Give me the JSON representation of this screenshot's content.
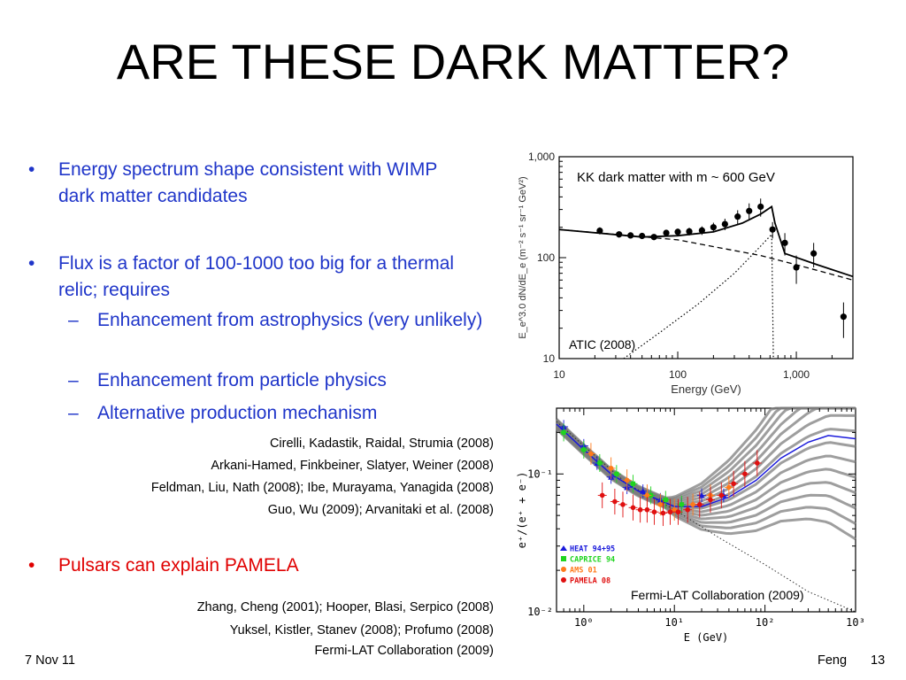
{
  "slide": {
    "title": "ARE THESE DARK MATTER?",
    "bullets": [
      {
        "marker": "•",
        "text": "Energy spectrum shape consistent with WIMP dark matter candidates"
      },
      {
        "marker": "•",
        "text": "Flux is a factor of 100-1000 too big for a thermal relic; requires"
      },
      {
        "marker": "•",
        "text": "Pulsars can explain PAMELA"
      }
    ],
    "subbullets": [
      {
        "marker": "–",
        "text": "Enhancement from astrophysics (very unlikely)"
      },
      {
        "marker": "–",
        "text": "Enhancement from particle physics"
      },
      {
        "marker": "–",
        "text": "Alternative production mechanism"
      }
    ],
    "refs_dm": [
      "Cirelli, Kadastik, Raidal, Strumia (2008)",
      "Arkani-Hamed, Finkbeiner, Slatyer, Weiner (2008)",
      "Feldman, Liu, Nath (2008); Ibe, Murayama, Yanagida (2008)",
      "Guo, Wu (2009);  Arvanitaki et al. (2008)"
    ],
    "refs_pulsar": [
      "Zhang, Cheng (2001);  Hooper, Blasi, Serpico (2008)",
      "Yuksel, Kistler, Stanev (2008); Profumo (2008)",
      "Fermi-LAT Collaboration (2009)"
    ],
    "footer": {
      "date": "7 Nov 11",
      "author": "Feng",
      "page": "13"
    },
    "colors": {
      "blue_text": "#1f35c9",
      "red_text": "#e00000"
    }
  },
  "chart_data": [
    {
      "type": "scatter",
      "xlabel": "Energy (GeV)",
      "ylabel": "E_e^3.0 dN/dE_e (m⁻² s⁻¹ sr⁻¹ GeV²)",
      "xscale": "log",
      "yscale": "log",
      "xlim": [
        10,
        3000
      ],
      "ylim": [
        10,
        1000
      ],
      "xticks": [
        {
          "v": 10,
          "label": "10"
        },
        {
          "v": 100,
          "label": "100"
        },
        {
          "v": 1000,
          "label": "1,000"
        }
      ],
      "yticks": [
        {
          "v": 10,
          "label": "10"
        },
        {
          "v": 100,
          "label": "100"
        },
        {
          "v": 1000,
          "label": "1,000"
        }
      ],
      "annotation": "KK dark matter with m ~ 600 GeV",
      "label": "ATIC (2008)",
      "points": [
        {
          "x": 22,
          "y": 185,
          "err": 15
        },
        {
          "x": 32,
          "y": 170,
          "err": 12
        },
        {
          "x": 40,
          "y": 166,
          "err": 10
        },
        {
          "x": 50,
          "y": 164,
          "err": 10
        },
        {
          "x": 63,
          "y": 160,
          "err": 10
        },
        {
          "x": 80,
          "y": 176,
          "err": 12
        },
        {
          "x": 100,
          "y": 180,
          "err": 14
        },
        {
          "x": 125,
          "y": 182,
          "err": 16
        },
        {
          "x": 160,
          "y": 186,
          "err": 18
        },
        {
          "x": 200,
          "y": 200,
          "err": 22
        },
        {
          "x": 250,
          "y": 215,
          "err": 28
        },
        {
          "x": 320,
          "y": 255,
          "err": 40
        },
        {
          "x": 400,
          "y": 290,
          "err": 55
        },
        {
          "x": 500,
          "y": 320,
          "err": 65
        },
        {
          "x": 630,
          "y": 190,
          "err": 35
        },
        {
          "x": 800,
          "y": 140,
          "err": 35
        },
        {
          "x": 1000,
          "y": 80,
          "err": 25
        },
        {
          "x": 1400,
          "y": 110,
          "err": 30
        },
        {
          "x": 2500,
          "y": 26,
          "err": 10
        }
      ],
      "total_curve": [
        [
          10,
          190
        ],
        [
          50,
          160
        ],
        [
          100,
          165
        ],
        [
          200,
          180
        ],
        [
          350,
          220
        ],
        [
          500,
          270
        ],
        [
          620,
          320
        ],
        [
          660,
          220
        ],
        [
          800,
          110
        ],
        [
          1500,
          85
        ],
        [
          3000,
          65
        ]
      ],
      "background_curve": [
        [
          10,
          190
        ],
        [
          100,
          150
        ],
        [
          500,
          105
        ],
        [
          1000,
          85
        ],
        [
          3000,
          60
        ]
      ],
      "kk_curve": [
        [
          35,
          10
        ],
        [
          70,
          18
        ],
        [
          150,
          35
        ],
        [
          300,
          70
        ],
        [
          500,
          130
        ],
        [
          620,
          170
        ],
        [
          640,
          10
        ]
      ]
    },
    {
      "type": "scatter",
      "xlabel": "E (GeV)",
      "ylabel": "e⁺/(e⁺ + e⁻)",
      "xscale": "log",
      "yscale": "log",
      "xlim": [
        0.5,
        1000
      ],
      "ylim": [
        0.01,
        0.3
      ],
      "xticks": [
        {
          "v": 1,
          "label": "10⁰"
        },
        {
          "v": 10,
          "label": "10¹"
        },
        {
          "v": 100,
          "label": "10²"
        },
        {
          "v": 1000,
          "label": "10³"
        }
      ],
      "yticks": [
        {
          "v": 0.01,
          "label": "10⁻²"
        },
        {
          "v": 0.1,
          "label": "10⁻¹"
        }
      ],
      "annotation": "Fermi-LAT Collaboration (2009)",
      "legend_placement": "bottom-left",
      "series": [
        {
          "name": "HEAT 94+95",
          "color": "#1a1adb",
          "marker": "triangle",
          "points": [
            [
              0.6,
              0.22
            ],
            [
              1.0,
              0.16
            ],
            [
              1.4,
              0.12
            ],
            [
              2.0,
              0.095
            ],
            [
              3.0,
              0.08
            ],
            [
              4.5,
              0.075
            ],
            [
              7.0,
              0.065
            ],
            [
              12,
              0.06
            ],
            [
              20,
              0.07
            ],
            [
              35,
              0.07
            ]
          ]
        },
        {
          "name": "CAPRICE 94",
          "color": "#1fd41f",
          "marker": "square",
          "points": [
            [
              0.6,
              0.2
            ],
            [
              1.0,
              0.15
            ],
            [
              1.5,
              0.12
            ],
            [
              2.3,
              0.1
            ],
            [
              3.5,
              0.085
            ],
            [
              5.5,
              0.07
            ],
            [
              8,
              0.065
            ],
            [
              12,
              0.06
            ]
          ]
        },
        {
          "name": "AMS 01",
          "color": "#ff7a1a",
          "marker": "circle",
          "points": [
            [
              1.2,
              0.14
            ],
            [
              2.0,
              0.11
            ],
            [
              3.0,
              0.09
            ],
            [
              5.0,
              0.07
            ],
            [
              7.0,
              0.06
            ],
            [
              10,
              0.055
            ],
            [
              16,
              0.06
            ],
            [
              25,
              0.07
            ],
            [
              40,
              0.08
            ]
          ]
        },
        {
          "name": "PAMELA 08",
          "color": "#e01010",
          "marker": "circle",
          "points": [
            [
              1.6,
              0.07
            ],
            [
              2.2,
              0.063
            ],
            [
              2.7,
              0.06
            ],
            [
              3.5,
              0.057
            ],
            [
              4.2,
              0.055
            ],
            [
              5.0,
              0.055
            ],
            [
              6.0,
              0.053
            ],
            [
              7.5,
              0.052
            ],
            [
              9.0,
              0.053
            ],
            [
              11,
              0.053
            ],
            [
              14,
              0.055
            ],
            [
              19,
              0.06
            ],
            [
              25,
              0.065
            ],
            [
              33,
              0.07
            ],
            [
              45,
              0.085
            ],
            [
              60,
              0.1
            ],
            [
              82,
              0.12
            ]
          ]
        }
      ],
      "model_curve": [
        [
          0.5,
          0.23
        ],
        [
          1,
          0.15
        ],
        [
          2,
          0.1
        ],
        [
          4,
          0.075
        ],
        [
          10,
          0.058
        ],
        [
          20,
          0.058
        ],
        [
          40,
          0.068
        ],
        [
          80,
          0.09
        ],
        [
          150,
          0.13
        ],
        [
          300,
          0.17
        ],
        [
          500,
          0.19
        ],
        [
          1000,
          0.18
        ]
      ],
      "secondary_curve": [
        [
          0.5,
          0.24
        ],
        [
          1,
          0.16
        ],
        [
          3,
          0.085
        ],
        [
          10,
          0.055
        ],
        [
          30,
          0.035
        ],
        [
          100,
          0.022
        ],
        [
          300,
          0.014
        ],
        [
          1000,
          0.01
        ]
      ]
    }
  ]
}
